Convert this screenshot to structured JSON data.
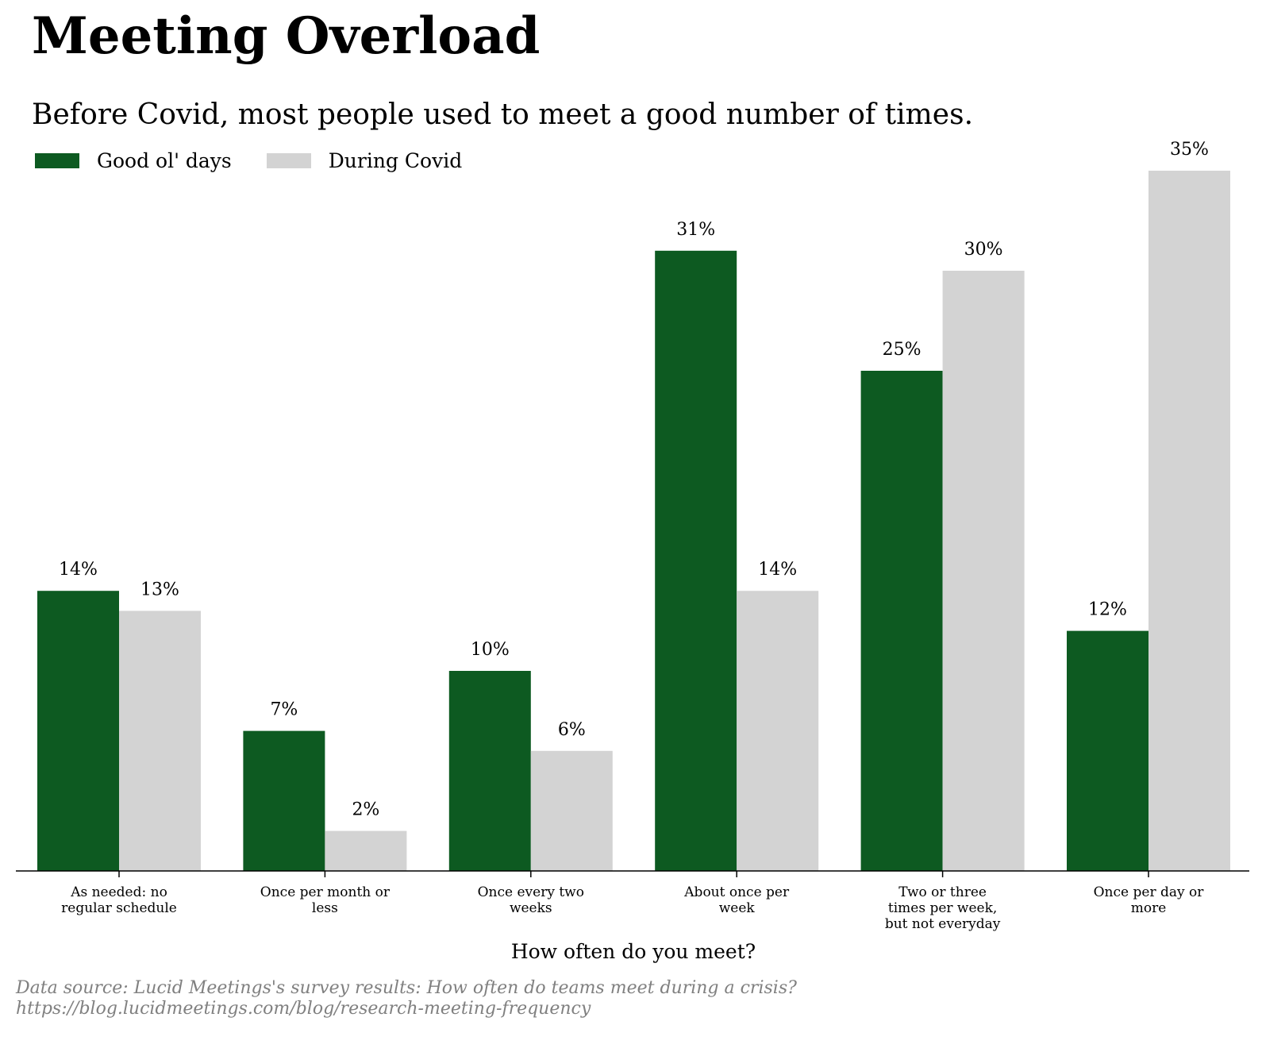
{
  "title": "Meeting Overload",
  "subtitle": "Before Covid, most people used to meet a good number of times.",
  "source": {
    "line1": "Data source: Lucid Meetings's survey results: How often do teams meet during a crisis?",
    "line2": "https://blog.lucidmeetings.com/blog/research-meeting-frequency"
  },
  "chart_data": {
    "type": "bar",
    "title": "Meeting Overload",
    "subtitle": "Before Covid, most people used to meet a good number of times.",
    "xlabel": "How often do you meet?",
    "ylabel": "",
    "ylim": [
      0,
      35
    ],
    "grid": false,
    "legend_position": "top-left",
    "value_suffix": "%",
    "categories": [
      [
        "As needed: no",
        "regular schedule"
      ],
      [
        "Once per month or",
        "less"
      ],
      [
        "Once every two",
        "weeks"
      ],
      [
        "About once per",
        "week"
      ],
      [
        "Two or three",
        "times per week,",
        "but not everyday"
      ],
      [
        "Once per day or",
        "more"
      ]
    ],
    "series": [
      {
        "name": "Good ol' days",
        "color": "#0d5a21",
        "values": [
          14,
          7,
          10,
          31,
          25,
          12
        ]
      },
      {
        "name": "During Covid",
        "color": "#d3d3d3",
        "values": [
          13,
          2,
          6,
          14,
          30,
          35
        ]
      }
    ]
  }
}
